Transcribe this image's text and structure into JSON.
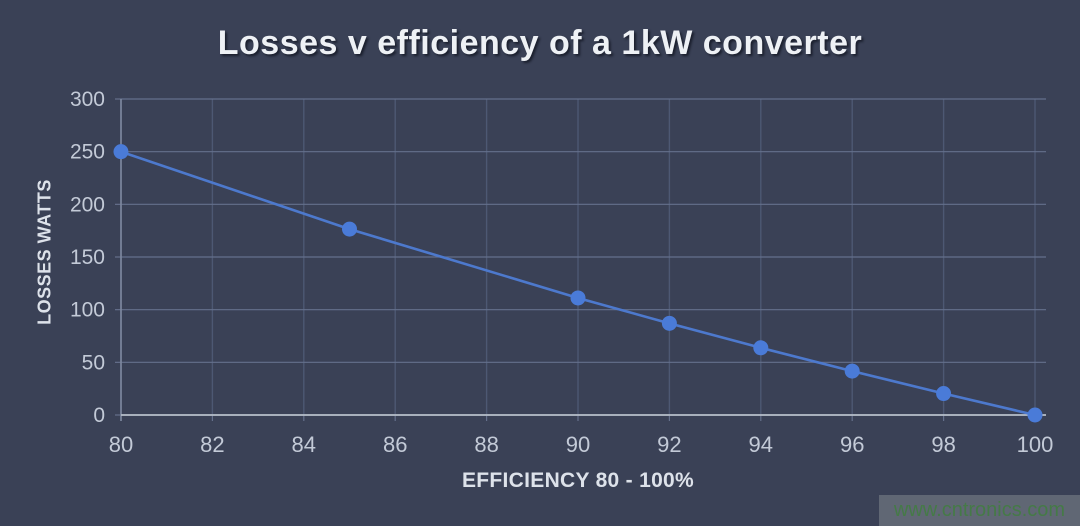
{
  "watermark": {
    "text": "www.cntronics.com"
  },
  "chart_data": {
    "type": "line",
    "title": "Losses v efficiency of a 1kW converter",
    "xlabel": "EFFICIENCY 80 - 100%",
    "ylabel": "LOSSES WATTS",
    "x": [
      80,
      85,
      90,
      92,
      94,
      96,
      98,
      100
    ],
    "y": [
      250,
      176.5,
      111.1,
      87,
      63.8,
      41.7,
      20.4,
      0
    ],
    "xlim": [
      80,
      100
    ],
    "ylim": [
      0,
      300
    ],
    "xticks": [
      80,
      82,
      84,
      86,
      88,
      90,
      92,
      94,
      96,
      98,
      100
    ],
    "yticks": [
      0,
      50,
      100,
      150,
      200,
      250,
      300
    ],
    "grid": true,
    "legend": false,
    "marker": "circle"
  },
  "theme": {
    "background": "#3a4156",
    "title_color": "#eef1f5",
    "axis_title_color": "#dde2ea",
    "tick_label": "#c3cad7",
    "x_axis_line": "#b7bec9",
    "y_axis_line": "#7f89a0",
    "grid_horizontal": "#65708c",
    "grid_vertical": "#4d5873",
    "line_color": "#4d79cd",
    "marker_color": "#4a7bd8",
    "watermark_bg": "#606774",
    "watermark_text": "#457a47"
  }
}
